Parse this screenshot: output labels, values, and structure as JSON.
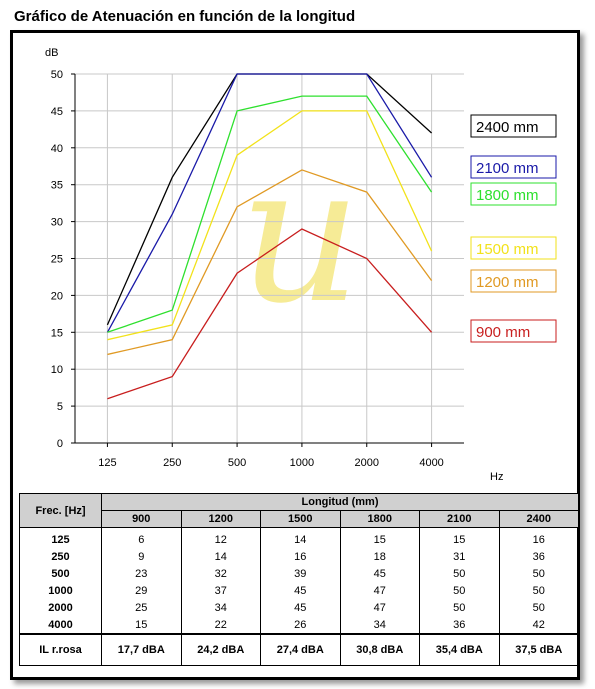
{
  "title": "Gráfico de Atenuación en función de la longitud",
  "chart_data": {
    "type": "line",
    "categories": [
      "125",
      "250",
      "500",
      "1000",
      "2000",
      "4000"
    ],
    "ylabel": "dB",
    "xlabel": "Hz",
    "ylim": [
      0,
      50
    ],
    "yticks": [
      0,
      5,
      10,
      15,
      20,
      25,
      30,
      35,
      40,
      45,
      50
    ],
    "grid": true,
    "series": [
      {
        "name": "2400 mm",
        "color": "#000000",
        "values": [
          16,
          36,
          50,
          50,
          50,
          42
        ]
      },
      {
        "name": "2100 mm",
        "color": "#1a1aa8",
        "values": [
          15,
          31,
          50,
          50,
          50,
          36
        ]
      },
      {
        "name": "1800 mm",
        "color": "#2ee02e",
        "values": [
          15,
          18,
          45,
          47,
          47,
          34
        ]
      },
      {
        "name": "1500 mm",
        "color": "#f2e21a",
        "values": [
          14,
          16,
          39,
          45,
          45,
          26
        ]
      },
      {
        "name": "1200 mm",
        "color": "#e09a24",
        "values": [
          12,
          14,
          32,
          37,
          34,
          22
        ]
      },
      {
        "name": "900 mm",
        "color": "#c81e1e",
        "values": [
          6,
          9,
          23,
          29,
          25,
          15
        ]
      }
    ],
    "watermark_color": "#f5e884"
  },
  "table": {
    "freq_header": "Frec. [Hz]",
    "group_header": "Longitud (mm)",
    "columns": [
      "900",
      "1200",
      "1500",
      "1800",
      "2100",
      "2400"
    ],
    "rows": [
      {
        "freq": "125",
        "values": [
          "6",
          "12",
          "14",
          "15",
          "15",
          "16"
        ]
      },
      {
        "freq": "250",
        "values": [
          "9",
          "14",
          "16",
          "18",
          "31",
          "36"
        ]
      },
      {
        "freq": "500",
        "values": [
          "23",
          "32",
          "39",
          "45",
          "50",
          "50"
        ]
      },
      {
        "freq": "1000",
        "values": [
          "29",
          "37",
          "45",
          "47",
          "50",
          "50"
        ]
      },
      {
        "freq": "2000",
        "values": [
          "25",
          "34",
          "45",
          "47",
          "50",
          "50"
        ]
      },
      {
        "freq": "4000",
        "values": [
          "15",
          "22",
          "26",
          "34",
          "36",
          "42"
        ]
      }
    ],
    "il_label": "IL r.rosa",
    "il_values": [
      "17,7 dBA",
      "24,2 dBA",
      "27,4 dBA",
      "30,8 dBA",
      "35,4 dBA",
      "37,5 dBA"
    ]
  }
}
